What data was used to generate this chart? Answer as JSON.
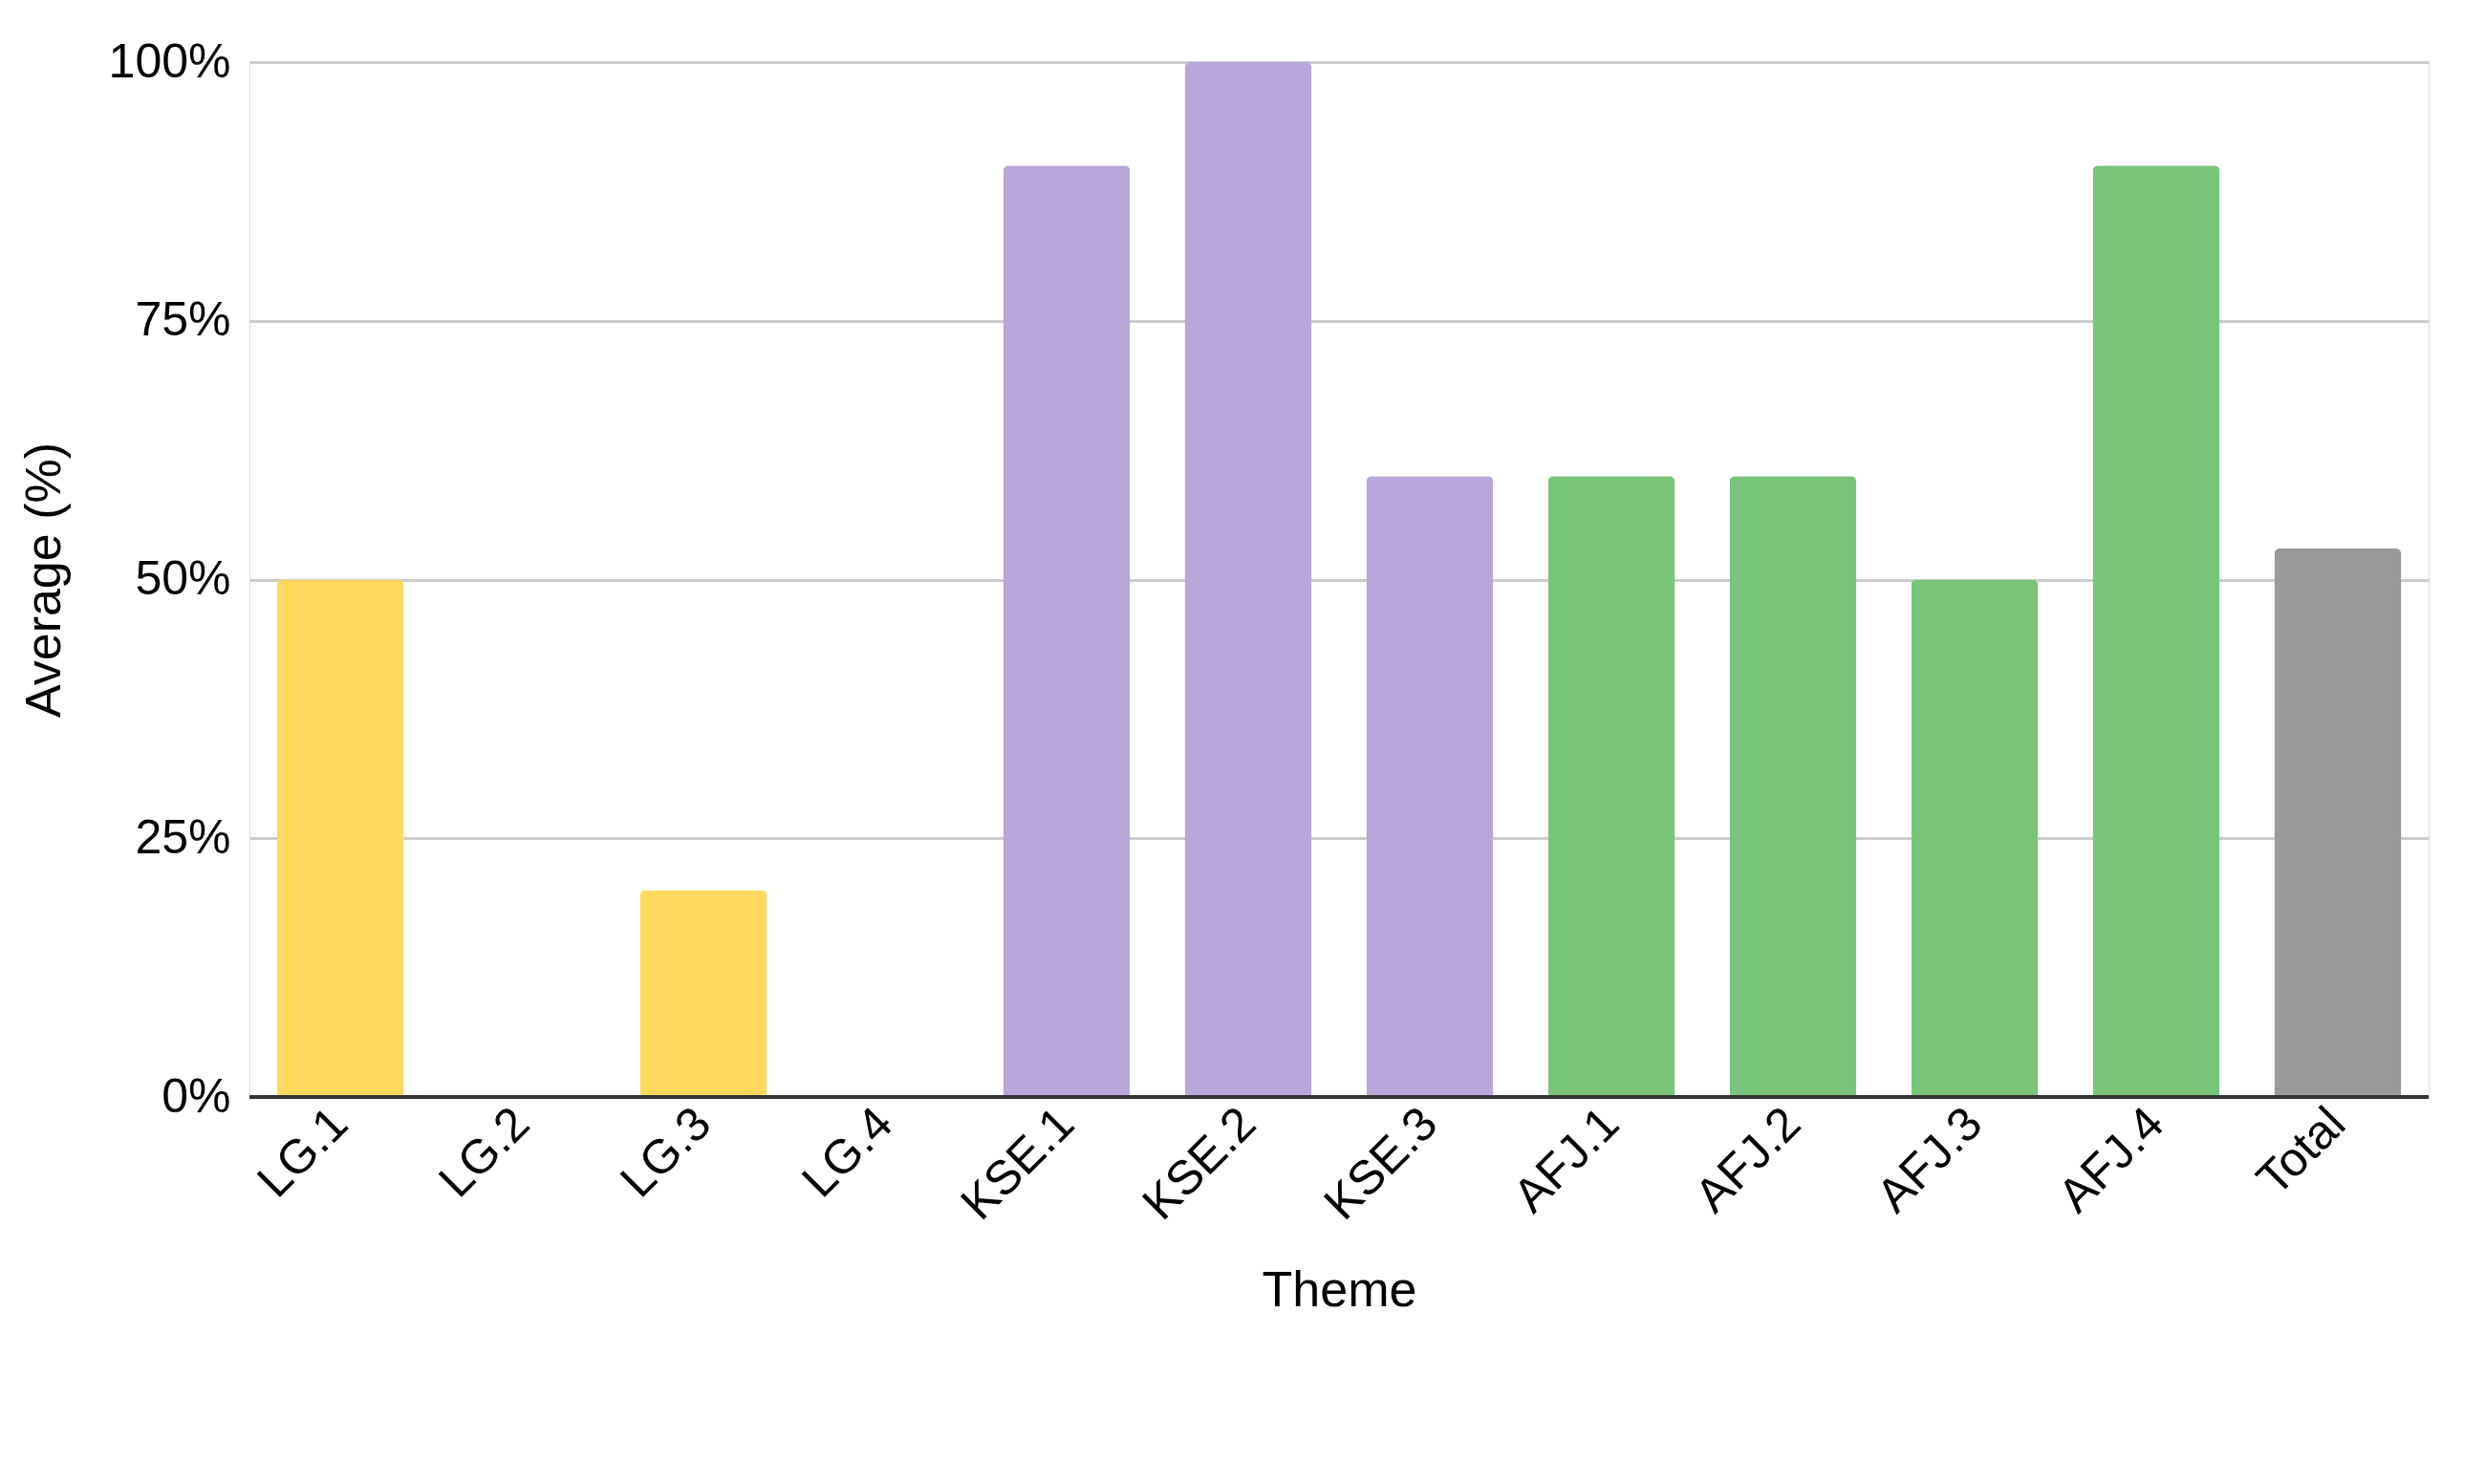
{
  "chart_data": {
    "type": "bar",
    "xlabel": "Theme",
    "ylabel": "Average (%)",
    "categories": [
      "LG.1",
      "LG.2",
      "LG.3",
      "LG.4",
      "KSE.1",
      "KSE.2",
      "KSE.3",
      "AFJ.1",
      "AFJ.2",
      "AFJ.3",
      "AFJ.4",
      "Total"
    ],
    "values": [
      50,
      0,
      20,
      0,
      90,
      100,
      60,
      60,
      60,
      50,
      90,
      53
    ],
    "colors": [
      "#ffd95f",
      "#ffd95f",
      "#ffd95f",
      "#ffd95f",
      "#b8a7d8",
      "#b8a7d8",
      "#b8a7d8",
      "#79c47b",
      "#79c47b",
      "#79c47b",
      "#79c47b",
      "#999999"
    ],
    "ylim": [
      0,
      100
    ],
    "yticks": [
      {
        "value": 0,
        "label": "0%"
      },
      {
        "value": 25,
        "label": "25%"
      },
      {
        "value": 50,
        "label": "50%"
      },
      {
        "value": 75,
        "label": "75%"
      },
      {
        "value": 100,
        "label": "100%"
      }
    ],
    "grid": "y"
  }
}
